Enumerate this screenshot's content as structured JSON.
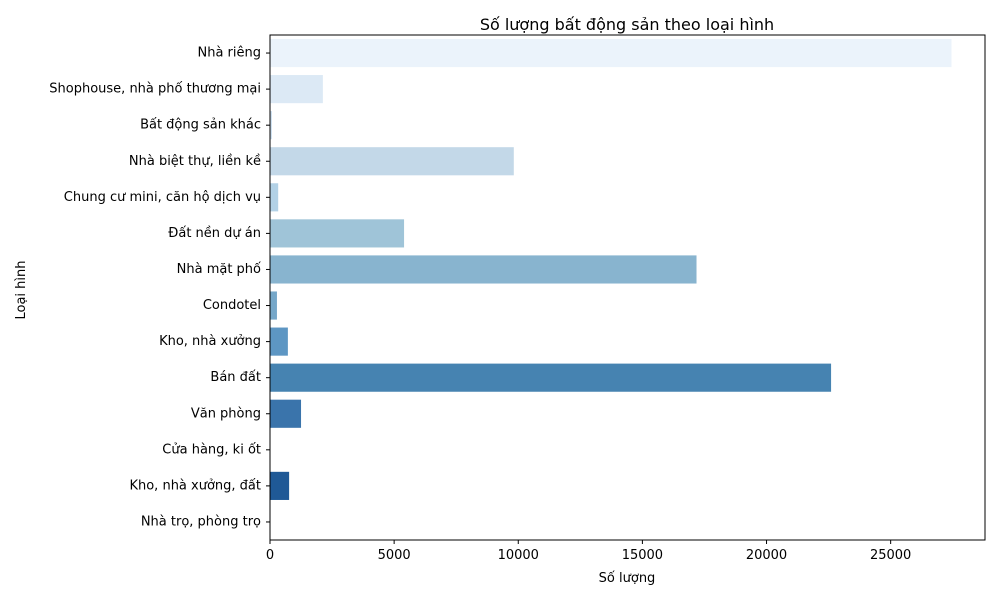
{
  "chart_data": {
    "type": "bar",
    "orientation": "horizontal",
    "title": "Số lượng bất động sản theo loại hình",
    "xlabel": "Số lượng",
    "ylabel": "Loại hình",
    "xlim": [
      0,
      28800
    ],
    "x_ticks": [
      0,
      5000,
      10000,
      15000,
      20000,
      25000
    ],
    "grid": false,
    "categories": [
      "Nhà riêng",
      "Shophouse, nhà phố thương mại",
      "Bất động sản khác",
      "Nhà biệt thự, liền kề",
      "Chung cư mini, căn hộ dịch vụ",
      "Đất nền dự án",
      "Nhà mặt phố",
      "Condotel",
      "Kho, nhà xưởng",
      "Bán đất",
      "Văn phòng",
      "Cửa hàng, ki ốt",
      "Kho, nhà xưởng, đất",
      "Nhà trọ, phòng trọ"
    ],
    "values": [
      27450,
      2130,
      80,
      9820,
      330,
      5400,
      17180,
      280,
      720,
      22600,
      1250,
      20,
      770,
      20
    ],
    "colors": [
      "#ebf3fb",
      "#dce9f5",
      "#d0e2f2",
      "#c3d8e8",
      "#b2d1e6",
      "#9fc4d8",
      "#88b4cf",
      "#75a7c9",
      "#5d96c3",
      "#4683b1",
      "#3a74ab",
      "#2e68a5",
      "#1f5996",
      "#134a8a"
    ]
  }
}
